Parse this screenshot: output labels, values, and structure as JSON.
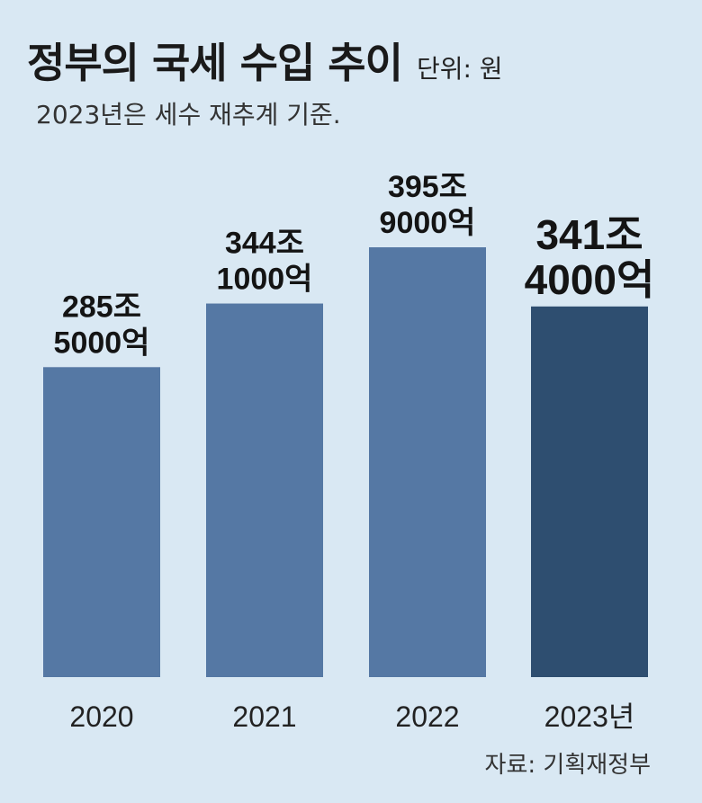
{
  "header": {
    "title": "정부의 국세 수입 추이",
    "unit": "단위: 원",
    "subtitle": "2023년은 세수 재추계 기준."
  },
  "footer": {
    "source": "자료: 기획재정부"
  },
  "colors": {
    "background": "#d9e8f3",
    "bar": "#5578a4",
    "bar_highlight": "#2e4e70"
  },
  "chart_data": {
    "type": "bar",
    "title": "정부의 국세 수입 추이",
    "unit": "단위: 원",
    "categories": [
      "2020",
      "2021",
      "2022",
      "2023년"
    ],
    "values": [
      285.5,
      344.1,
      395.9,
      341.4
    ],
    "value_labels": [
      [
        "285조",
        "5000억"
      ],
      [
        "344조",
        "1000억"
      ],
      [
        "395조",
        "9000억"
      ],
      [
        "341조",
        "4000억"
      ]
    ],
    "highlight_index": 3,
    "ylim": [
      0,
      395.9
    ],
    "grid": false,
    "legend": "none"
  }
}
